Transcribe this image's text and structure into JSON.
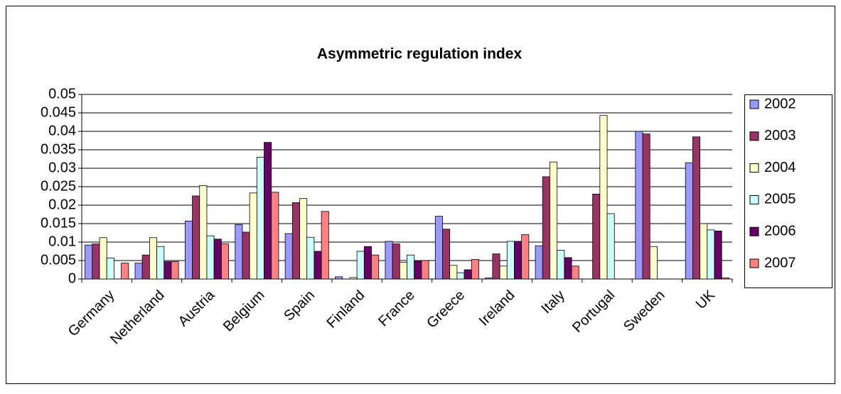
{
  "chart_data": {
    "type": "bar",
    "title": "Asymmetric regulation index",
    "categories": [
      "Germany",
      "Netherland",
      "Austria",
      "Belgium",
      "Spain",
      "Finland",
      "France",
      "Greece",
      "Ireland",
      "Italy",
      "Portugal",
      "Sweden",
      "UK"
    ],
    "series": [
      {
        "name": "2002",
        "color": "#9999ff",
        "values": [
          0.0092,
          0.0043,
          0.0157,
          0.0147,
          0.0123,
          0.0006,
          0.0102,
          0.017,
          0.0003,
          0.009,
          0,
          0.04,
          0.0315
        ]
      },
      {
        "name": "2003",
        "color": "#993366",
        "values": [
          0.0095,
          0.0065,
          0.0225,
          0.0127,
          0.0207,
          0,
          0.0095,
          0.0135,
          0.0068,
          0.0277,
          0.023,
          0.0393,
          0.0385
        ]
      },
      {
        "name": "2004",
        "color": "#ffffcc",
        "values": [
          0.0112,
          0.0112,
          0.0253,
          0.0233,
          0.0218,
          0.0004,
          0.0045,
          0.0037,
          0.0035,
          0.0317,
          0.0443,
          0.0088,
          0.015
        ]
      },
      {
        "name": "2005",
        "color": "#ccffff",
        "values": [
          0.0057,
          0.0088,
          0.0117,
          0.033,
          0.0113,
          0.0075,
          0.0065,
          0.0017,
          0.0102,
          0.0078,
          0.0177,
          0,
          0.0133
        ]
      },
      {
        "name": "2006",
        "color": "#660066",
        "values": [
          0,
          0.0047,
          0.0108,
          0.037,
          0.0075,
          0.0088,
          0.0048,
          0.0025,
          0.0102,
          0.0058,
          0,
          0,
          0.013
        ]
      },
      {
        "name": "2007",
        "color": "#ff8080",
        "values": [
          0.0043,
          0.0047,
          0.0095,
          0.0235,
          0.0183,
          0.0065,
          0.005,
          0.0053,
          0.012,
          0.0035,
          0,
          0,
          0.0003
        ]
      }
    ],
    "ylim": [
      0,
      0.05
    ],
    "yticks": [
      0,
      0.005,
      0.01,
      0.015,
      0.02,
      0.025,
      0.03,
      0.035,
      0.04,
      0.045,
      0.05
    ],
    "grid": true,
    "legend": "right"
  }
}
